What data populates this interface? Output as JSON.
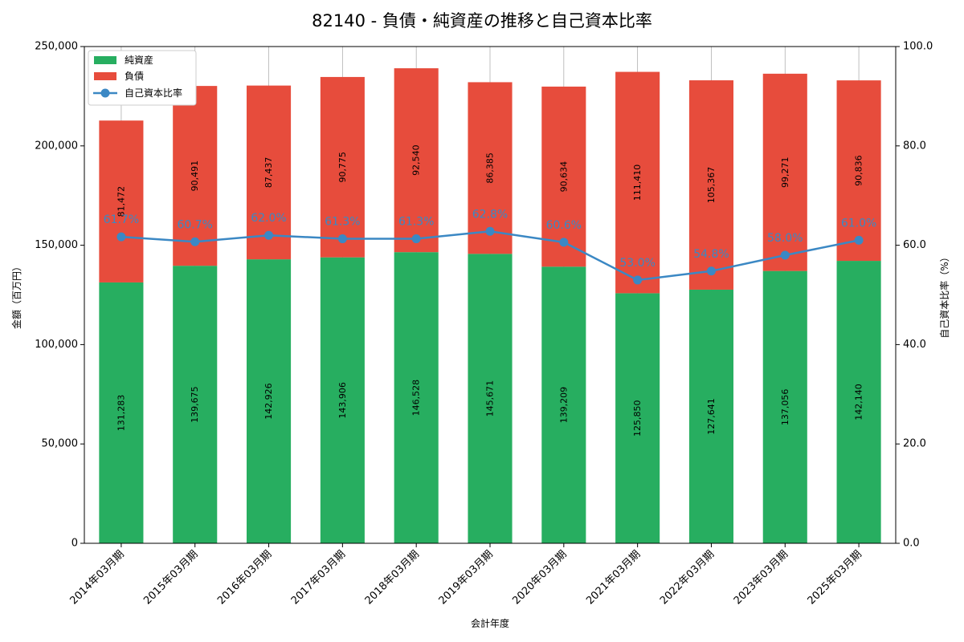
{
  "chart_data": {
    "type": "bar",
    "stacked": true,
    "title": "82140 - 負債・純資産の推移と自己資本比率",
    "xlabel": "会計年度",
    "ylabel": "金額（百万円）",
    "y2label": "自己資本比率（%）",
    "ylim": [
      0,
      250000
    ],
    "y2lim": [
      0,
      100
    ],
    "yticks": [
      0,
      50000,
      100000,
      150000,
      200000,
      250000
    ],
    "y2ticks": [
      0,
      20,
      40,
      60,
      80,
      100
    ],
    "ytick_labels": [
      "0",
      "50,000",
      "100,000",
      "150,000",
      "200,000",
      "250,000"
    ],
    "y2tick_labels": [
      "0.0",
      "20.0",
      "40.0",
      "60.0",
      "80.0",
      "100.0"
    ],
    "grid": "x-only",
    "legend_position": "top-left",
    "categories": [
      "2014年03月期",
      "2015年03月期",
      "2016年03月期",
      "2017年03月期",
      "2018年03月期",
      "2019年03月期",
      "2020年03月期",
      "2021年03月期",
      "2022年03月期",
      "2023年03月期",
      "2025年03月期"
    ],
    "series": [
      {
        "name": "純資産",
        "kind": "bar",
        "color": "#27ae60",
        "values": [
          131283,
          139675,
          142926,
          143906,
          146528,
          145671,
          139209,
          125850,
          127641,
          137056,
          142140
        ],
        "labels": [
          "131,283",
          "139,675",
          "142,926",
          "143,906",
          "146,528",
          "145,671",
          "139,209",
          "125,850",
          "127,641",
          "137,056",
          "142,140"
        ]
      },
      {
        "name": "負債",
        "kind": "bar",
        "color": "#e74c3c",
        "values": [
          81472,
          90491,
          87437,
          90775,
          92540,
          86385,
          90634,
          111410,
          105367,
          99271,
          90836
        ],
        "labels": [
          "81,472",
          "90,491",
          "87,437",
          "90,775",
          "92,540",
          "86,385",
          "90,634",
          "111,410",
          "105,367",
          "99,271",
          "90,836"
        ]
      },
      {
        "name": "自己資本比率",
        "kind": "line",
        "axis": "right",
        "color": "#3b88c4",
        "values": [
          61.7,
          60.7,
          62.0,
          61.3,
          61.3,
          62.8,
          60.6,
          53.0,
          54.8,
          58.0,
          61.0
        ],
        "labels": [
          "61.7%",
          "60.7%",
          "62.0%",
          "61.3%",
          "61.3%",
          "62.8%",
          "60.6%",
          "53.0%",
          "54.8%",
          "58.0%",
          "61.0%"
        ]
      }
    ]
  }
}
